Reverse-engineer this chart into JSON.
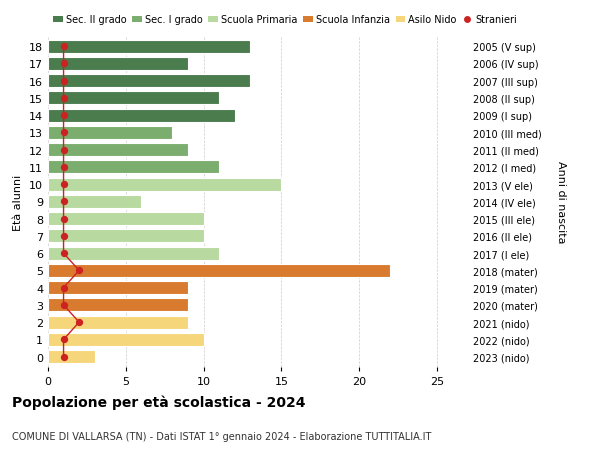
{
  "ages": [
    18,
    17,
    16,
    15,
    14,
    13,
    12,
    11,
    10,
    9,
    8,
    7,
    6,
    5,
    4,
    3,
    2,
    1,
    0
  ],
  "years": [
    "2005 (V sup)",
    "2006 (IV sup)",
    "2007 (III sup)",
    "2008 (II sup)",
    "2009 (I sup)",
    "2010 (III med)",
    "2011 (II med)",
    "2012 (I med)",
    "2013 (V ele)",
    "2014 (IV ele)",
    "2015 (III ele)",
    "2016 (II ele)",
    "2017 (I ele)",
    "2018 (mater)",
    "2019 (mater)",
    "2020 (mater)",
    "2021 (nido)",
    "2022 (nido)",
    "2023 (nido)"
  ],
  "bar_values": [
    13,
    9,
    13,
    11,
    12,
    8,
    9,
    11,
    15,
    6,
    10,
    10,
    11,
    22,
    9,
    9,
    9,
    10,
    3
  ],
  "bar_colors": [
    "#4a7c4e",
    "#4a7c4e",
    "#4a7c4e",
    "#4a7c4e",
    "#4a7c4e",
    "#7aad6e",
    "#7aad6e",
    "#7aad6e",
    "#b8d9a0",
    "#b8d9a0",
    "#b8d9a0",
    "#b8d9a0",
    "#b8d9a0",
    "#d97b2e",
    "#d97b2e",
    "#d97b2e",
    "#f5d67a",
    "#f5d67a",
    "#f5d67a"
  ],
  "stranieri_x": [
    1,
    1,
    1,
    1,
    1,
    1,
    1,
    1,
    1,
    1,
    1,
    1,
    1,
    2,
    1,
    1,
    2,
    1,
    1
  ],
  "legend_labels": [
    "Sec. II grado",
    "Sec. I grado",
    "Scuola Primaria",
    "Scuola Infanzia",
    "Asilo Nido",
    "Stranieri"
  ],
  "legend_colors": [
    "#4a7c4e",
    "#7aad6e",
    "#b8d9a0",
    "#d97b2e",
    "#f5d67a",
    "#cc2222"
  ],
  "title": "Popolazione per età scolastica - 2024",
  "subtitle": "COMUNE DI VALLARSA (TN) - Dati ISTAT 1° gennaio 2024 - Elaborazione TUTTITALIA.IT",
  "ylabel_left": "Età alunni",
  "ylabel_right": "Anni di nascita",
  "xlim": [
    0,
    27
  ],
  "xticks": [
    0,
    5,
    10,
    15,
    20,
    25
  ],
  "bg_color": "#ffffff",
  "grid_color": "#cccccc"
}
